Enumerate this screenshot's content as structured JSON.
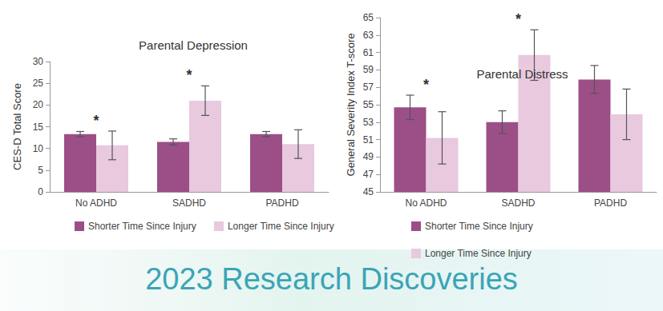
{
  "chart_data": [
    {
      "type": "bar",
      "title": "Parental Depression",
      "y_label": "CES-D Total Score",
      "categories": [
        "No ADHD",
        "SADHD",
        "PADHD"
      ],
      "series": [
        {
          "name": "Shorter Time Since Injury",
          "color": "#9b4f86",
          "values": [
            13.3,
            11.5,
            13.3
          ],
          "errors": [
            0.6,
            0.7,
            0.6
          ]
        },
        {
          "name": "Longer Time Since Injury",
          "color": "#e8c9dd",
          "values": [
            10.7,
            21.0,
            11.0
          ],
          "errors": [
            3.3,
            3.4,
            3.3
          ]
        }
      ],
      "ylim": [
        0,
        30
      ],
      "yticks": [
        0,
        5,
        10,
        15,
        20,
        25,
        30
      ],
      "grid": false,
      "legend": "bottom",
      "annotations": [
        {
          "category": "No ADHD",
          "text": "*"
        },
        {
          "category": "SADHD",
          "text": "*"
        }
      ]
    },
    {
      "type": "bar",
      "title": "Parental Distress",
      "y_label": "General Severity Index T-score",
      "categories": [
        "No ADHD",
        "SADHD",
        "PADHD"
      ],
      "series": [
        {
          "name": "Shorter Time Since Injury",
          "color": "#9b4f86",
          "values": [
            54.7,
            53.0,
            57.9
          ],
          "errors": [
            1.4,
            1.3,
            1.6
          ]
        },
        {
          "name": "Longer Time Since Injury",
          "color": "#e8c9dd",
          "values": [
            51.2,
            60.7,
            53.9
          ],
          "errors": [
            3.0,
            2.9,
            2.9
          ]
        }
      ],
      "ylim": [
        45,
        65
      ],
      "yticks": [
        45,
        47,
        49,
        51,
        53,
        55,
        57,
        59,
        61,
        63,
        65
      ],
      "grid": false,
      "legend": "bottom",
      "annotations": [
        {
          "category": "No ADHD",
          "text": "*"
        },
        {
          "category": "SADHD",
          "text": "*"
        }
      ]
    }
  ],
  "footer": "2023 Research Discoveries"
}
